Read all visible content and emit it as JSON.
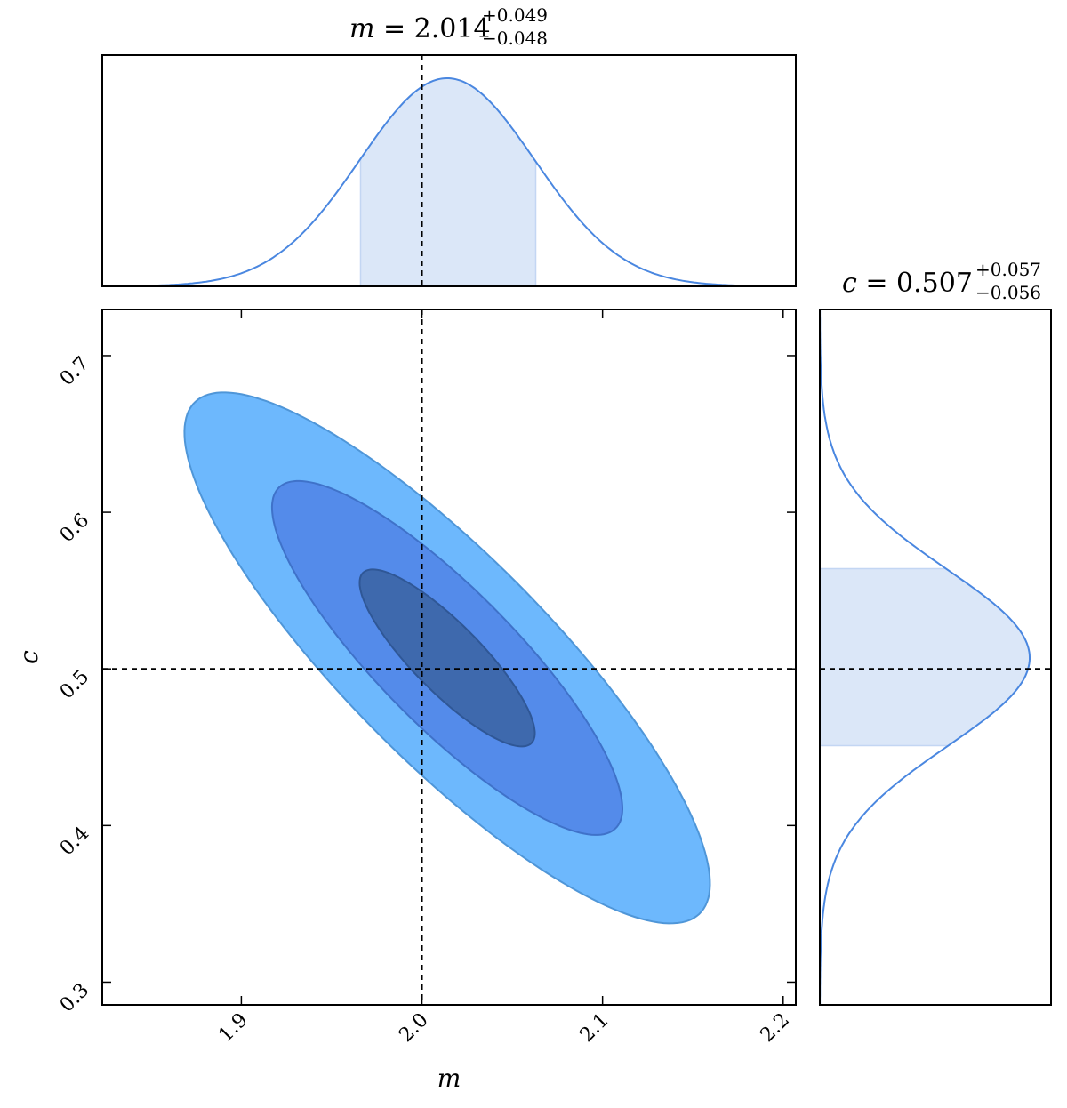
{
  "chart_data": {
    "type": "corner",
    "parameters": [
      {
        "name": "m",
        "axis_label": "m",
        "median": 2.014,
        "err_plus": 0.049,
        "err_minus": 0.048,
        "title": {
          "prefix": "m = ",
          "value": "2.014",
          "upper": "+0.049",
          "lower": "−0.048"
        },
        "truth": 2.0,
        "range": [
          1.823,
          2.207
        ],
        "ticks": [
          1.9,
          2.0,
          2.1,
          2.2
        ],
        "tick_labels": [
          "1.9",
          "2.0",
          "2.1",
          "2.2"
        ]
      },
      {
        "name": "c",
        "axis_label": "c",
        "median": 0.507,
        "err_plus": 0.057,
        "err_minus": 0.056,
        "title": {
          "prefix": "c = ",
          "value": "0.507",
          "upper": "+0.057",
          "lower": "−0.056"
        },
        "truth": 0.5,
        "range": [
          0.2855,
          0.7295
        ],
        "ticks": [
          0.3,
          0.4,
          0.5,
          0.6,
          0.7
        ],
        "tick_labels": [
          "0.3",
          "0.4",
          "0.5",
          "0.6",
          "0.7"
        ]
      }
    ],
    "joint": {
      "center": [
        2.014,
        0.507
      ],
      "sigma": [
        0.0485,
        0.0565
      ],
      "correlation": -0.85,
      "contour_sigmas": [
        1,
        2,
        3
      ],
      "colors": [
        "#3e69ad",
        "#548bea",
        "#6db8fd"
      ],
      "edge_colors": [
        "#2f5796",
        "#3f72c9",
        "#4f96d8"
      ]
    },
    "marginal": {
      "line_color": "#4a87e0",
      "fill_color": "#dbe7f8",
      "shaded_interval": "median ± 1σ"
    },
    "truth_line_style": "dashed",
    "grid": false
  }
}
